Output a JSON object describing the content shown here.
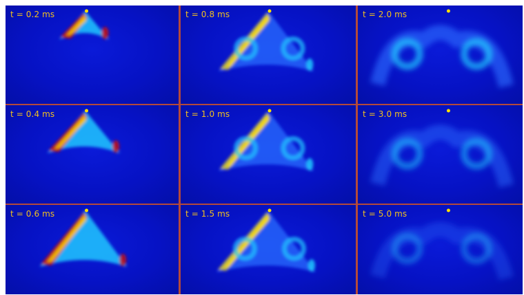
{
  "frames": [
    {
      "label": "t = 0.2 ms",
      "stage": 0
    },
    {
      "label": "t = 0.8 ms",
      "stage": 3
    },
    {
      "label": "t = 2.0 ms",
      "stage": 5
    },
    {
      "label": "t = 0.4 ms",
      "stage": 1
    },
    {
      "label": "t = 1.0 ms",
      "stage": 3
    },
    {
      "label": "t = 3.0 ms",
      "stage": 6
    },
    {
      "label": "t = 0.6 ms",
      "stage": 2
    },
    {
      "label": "t = 1.5 ms",
      "stage": 4
    },
    {
      "label": "t = 5.0 ms",
      "stage": 7
    }
  ],
  "colors": {
    "background": "#0612c4",
    "divider": "#b44a3a",
    "label": "#f2c01e",
    "hot": "#c81010",
    "warm": "#ffe000",
    "mid": "#22c8ff",
    "cool": "#2a6cff"
  }
}
